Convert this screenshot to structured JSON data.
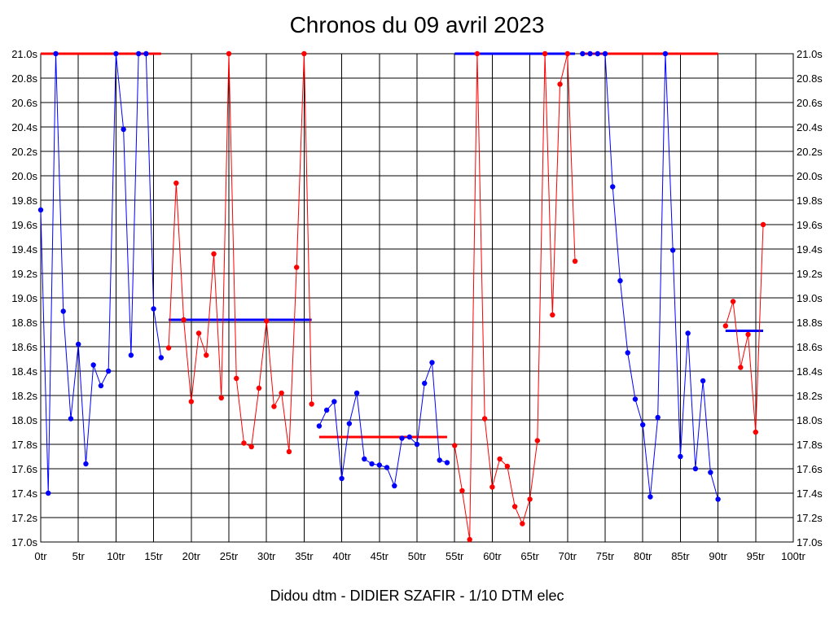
{
  "chart_data": {
    "type": "line",
    "title": "Chronos du 09 avril 2023",
    "xlabel": "Didou dtm - DIDIER SZAFIR - 1/10 DTM elec",
    "ylabel": "",
    "xlim": [
      0,
      100
    ],
    "ylim": [
      17.0,
      21.0
    ],
    "grid": true,
    "x_ticks": [
      "0tr",
      "5tr",
      "10tr",
      "15tr",
      "20tr",
      "25tr",
      "30tr",
      "35tr",
      "40tr",
      "45tr",
      "50tr",
      "55tr",
      "60tr",
      "65tr",
      "70tr",
      "75tr",
      "80tr",
      "85tr",
      "90tr",
      "95tr",
      "100tr"
    ],
    "y_ticks": [
      "17.0s",
      "17.2s",
      "17.4s",
      "17.6s",
      "17.8s",
      "18.0s",
      "18.2s",
      "18.4s",
      "18.6s",
      "18.8s",
      "19.0s",
      "19.2s",
      "19.4s",
      "19.6s",
      "19.8s",
      "20.0s",
      "20.2s",
      "20.4s",
      "20.6s",
      "20.8s",
      "21.0s"
    ],
    "colors": {
      "blue": "#0000ff",
      "red": "#ff0000",
      "grid": "#000000"
    },
    "series": [
      {
        "color": "#0000ff",
        "x": [
          0,
          1,
          2,
          3,
          4,
          5,
          6,
          7,
          8,
          9,
          10,
          11,
          12,
          13,
          14,
          15,
          16
        ],
        "y": [
          19.72,
          17.4,
          21.0,
          18.89,
          18.01,
          18.62,
          17.64,
          18.45,
          18.28,
          18.4,
          21.0,
          20.38,
          18.53,
          21.0,
          21.0,
          18.91,
          18.51
        ],
        "avg": 21.0,
        "avg_color": "#ff0000",
        "avg_range": [
          0,
          16
        ]
      },
      {
        "color": "#ff0000",
        "x": [
          17,
          18,
          19,
          20,
          21,
          22,
          23,
          24,
          25,
          26,
          27,
          28,
          29,
          30,
          31,
          32,
          33,
          34,
          35,
          36
        ],
        "y": [
          18.59,
          19.94,
          18.82,
          18.15,
          18.71,
          18.53,
          19.36,
          18.18,
          21.0,
          18.34,
          17.81,
          17.78,
          18.26,
          18.81,
          18.11,
          18.22,
          17.74,
          19.25,
          21.0,
          18.13
        ],
        "avg": 18.82,
        "avg_color": "#0000ff",
        "avg_range": [
          17,
          36
        ]
      },
      {
        "color": "#0000ff",
        "x": [
          37,
          38,
          39,
          40,
          41,
          42,
          43,
          44,
          45,
          46,
          47,
          48,
          49,
          50,
          51,
          52,
          53,
          54
        ],
        "y": [
          17.95,
          18.08,
          18.15,
          17.52,
          17.97,
          18.22,
          17.68,
          17.64,
          17.63,
          17.61,
          17.46,
          17.85,
          17.86,
          17.8,
          18.3,
          18.47,
          17.67,
          17.65
        ],
        "avg": 17.86,
        "avg_color": "#ff0000",
        "avg_range": [
          37,
          54
        ]
      },
      {
        "color": "#ff0000",
        "x": [
          55,
          56,
          57,
          58,
          59,
          60,
          61,
          62,
          63,
          64,
          65,
          66,
          67,
          68,
          69,
          70,
          71
        ],
        "y": [
          17.79,
          17.42,
          17.02,
          21.0,
          18.01,
          17.45,
          17.68,
          17.62,
          17.29,
          17.15,
          17.35,
          17.83,
          21.0,
          18.86,
          20.75,
          21.0,
          19.3
        ],
        "avg": 21.0,
        "avg_color": "#0000ff",
        "avg_range": [
          55,
          71
        ]
      },
      {
        "color": "#0000ff",
        "x": [
          72,
          73,
          74,
          75,
          76,
          77,
          78,
          79,
          80,
          81,
          82,
          83,
          84,
          85,
          86,
          87,
          88,
          89,
          90
        ],
        "y": [
          21.0,
          21.0,
          21.0,
          21.0,
          19.91,
          19.14,
          18.55,
          18.17,
          17.96,
          17.37,
          18.02,
          21.0,
          19.39,
          17.7,
          18.71,
          17.6,
          18.32,
          17.57,
          17.35
        ],
        "avg": 21.0,
        "avg_color": "#ff0000",
        "avg_range": [
          72,
          90
        ]
      },
      {
        "color": "#ff0000",
        "x": [
          91,
          92,
          93,
          94,
          95,
          96
        ],
        "y": [
          18.77,
          18.97,
          18.43,
          18.7,
          17.9,
          19.6
        ],
        "avg": 18.73,
        "avg_color": "#0000ff",
        "avg_range": [
          91,
          96
        ]
      }
    ]
  }
}
